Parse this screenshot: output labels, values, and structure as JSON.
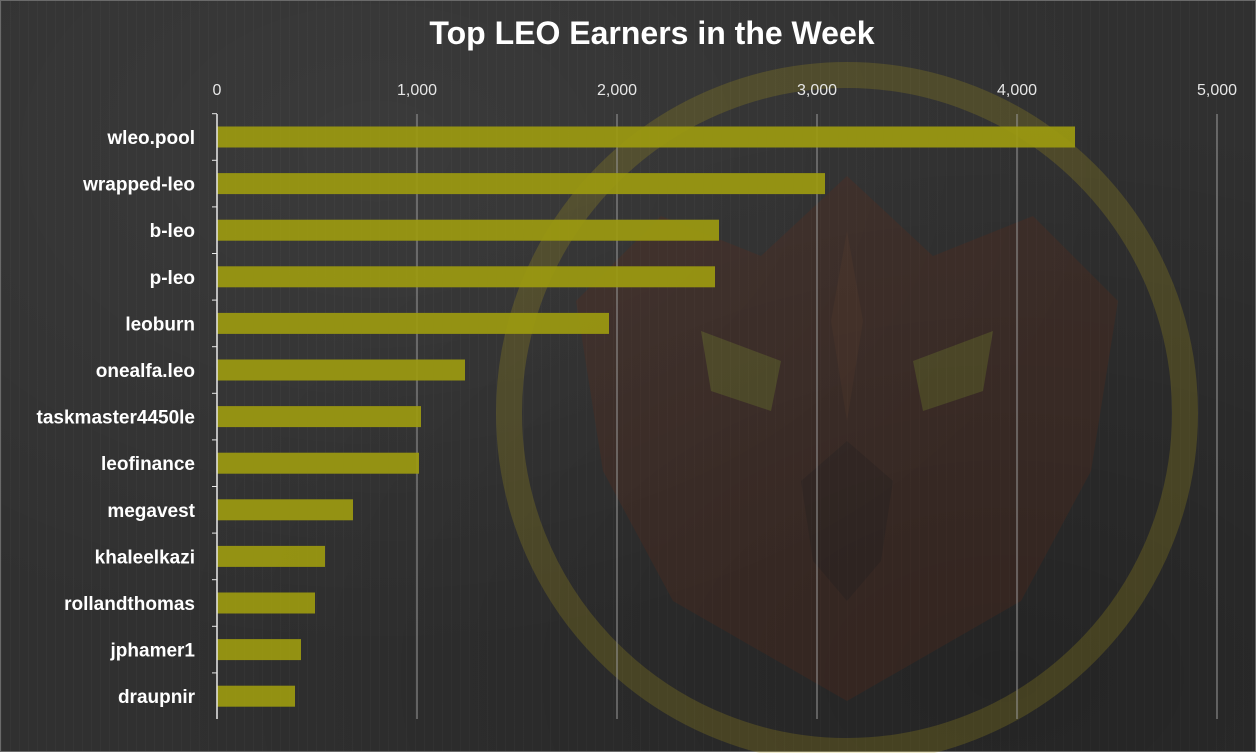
{
  "chart_data": {
    "type": "bar",
    "orientation": "horizontal",
    "title": "Top LEO Earners in the Week",
    "categories": [
      "wleo.pool",
      "wrapped-leo",
      "b-leo",
      "p-leo",
      "leoburn",
      "onealfa.leo",
      "taskmaster4450le",
      "leofinance",
      "megavest",
      "khaleelkazi",
      "rollandthomas",
      "jphamer1",
      "draupnir"
    ],
    "values": [
      4290,
      3040,
      2510,
      2490,
      1960,
      1240,
      1020,
      1010,
      680,
      540,
      490,
      420,
      390
    ],
    "xlim": [
      0,
      5000
    ],
    "xticks": [
      0,
      1000,
      2000,
      3000,
      4000,
      5000
    ],
    "xtick_labels": [
      "0",
      "1,000",
      "2,000",
      "3,000",
      "4,000",
      "5,000"
    ],
    "x_axis_position": "top",
    "grid": "vertical",
    "bar_color": "#9c9a10",
    "legend": "none",
    "watermark": "lion-shield-logo"
  }
}
